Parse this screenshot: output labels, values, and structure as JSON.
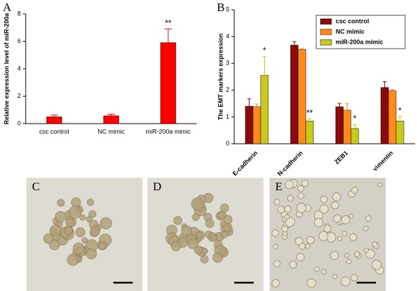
{
  "chart_data": [
    {
      "type": "bar",
      "panel_label": "A",
      "ylabel": "Relative expression level of miR-200a",
      "categories": [
        "csc control",
        "NC mimic",
        "miR-200a mimic"
      ],
      "values": [
        0.5,
        0.57,
        5.9
      ],
      "errors": [
        0.12,
        0.12,
        1.0
      ],
      "color": "#ff0000",
      "significance": [
        null,
        null,
        "**"
      ],
      "ylim": [
        0,
        8
      ],
      "yticks": [
        0,
        2,
        4,
        6,
        8
      ]
    },
    {
      "type": "bar",
      "panel_label": "B",
      "ylabel": "The EMT markers expression",
      "categories": [
        "E-cadherin",
        "N-cadherin",
        "ZEB1",
        "vimentin"
      ],
      "series": [
        {
          "name": "csc control",
          "color": "#8b0a0a",
          "values": [
            1.4,
            3.68,
            1.38,
            2.1
          ],
          "errors": [
            0.28,
            0.13,
            0.12,
            0.22
          ]
        },
        {
          "name": "NC mimic",
          "color": "#ff8c1a",
          "values": [
            1.38,
            3.52,
            1.25,
            1.98
          ],
          "errors": [
            0.1,
            0.03,
            0.25,
            0.05
          ]
        },
        {
          "name": "miR-200a mimic",
          "color": "#c8c81e",
          "values": [
            2.55,
            0.85,
            0.57,
            0.85
          ],
          "errors": [
            0.7,
            0.08,
            0.15,
            0.17
          ],
          "significance": [
            "*",
            "**",
            "*",
            "*"
          ]
        }
      ],
      "ylim": [
        0,
        5
      ],
      "yticks": [
        0,
        1,
        2,
        3,
        4,
        5
      ],
      "legend": "upper right"
    }
  ],
  "panels": [
    {
      "label": "C"
    },
    {
      "label": "D"
    },
    {
      "label": "E"
    }
  ]
}
